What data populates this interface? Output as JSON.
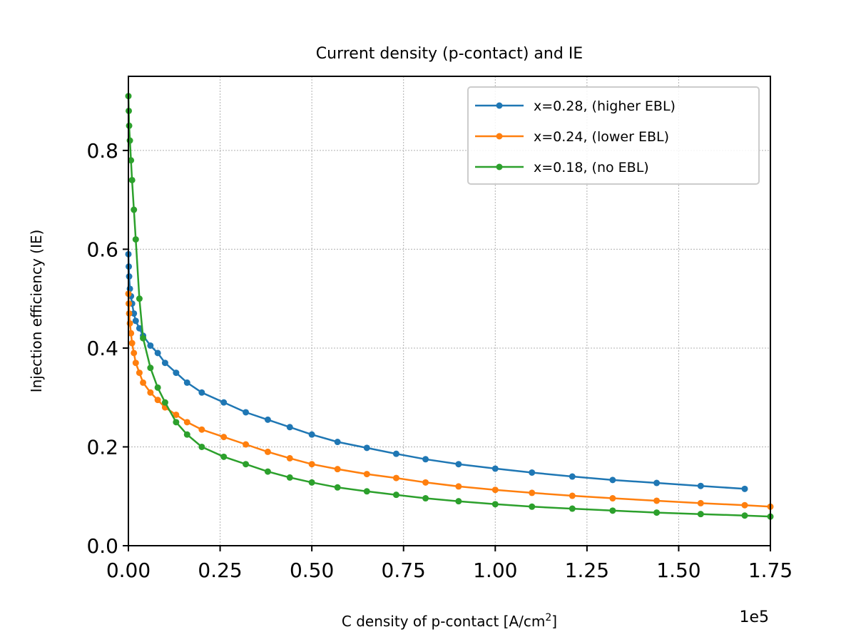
{
  "chart_data": {
    "type": "line",
    "title": "Current density (p-contact) and IE",
    "xlabel": "C density of p-contact [A/cm",
    "xlabel_sup": "2",
    "xlabel_suffix": "]",
    "ylabel": "Injection efficiency (IE)",
    "x_offset_label": "1e5",
    "xlim": [
      0,
      175000
    ],
    "ylim": [
      0,
      0.95
    ],
    "x_ticks": [
      0,
      25000,
      50000,
      75000,
      100000,
      125000,
      150000,
      175000
    ],
    "x_tick_labels": [
      "0.00",
      "0.25",
      "0.50",
      "0.75",
      "1.00",
      "1.25",
      "1.50",
      "1.75"
    ],
    "y_ticks": [
      0,
      0.2,
      0.4,
      0.6,
      0.8
    ],
    "y_tick_labels": [
      "0.0",
      "0.2",
      "0.4",
      "0.6",
      "0.8"
    ],
    "grid": true,
    "legend_position": "top-right",
    "series": [
      {
        "name": "x=0.28, (higher EBL)",
        "color": "#1f77b4",
        "x": [
          0,
          100,
          200,
          400,
          700,
          1000,
          1500,
          2000,
          3000,
          4000,
          6000,
          8000,
          10000,
          13000,
          16000,
          20000,
          26000,
          32000,
          38000,
          44000,
          50000,
          57000,
          65000,
          73000,
          81000,
          90000,
          100000,
          110000,
          121000,
          132000,
          144000,
          156000,
          168000
        ],
        "y": [
          0.59,
          0.565,
          0.545,
          0.52,
          0.505,
          0.49,
          0.47,
          0.455,
          0.44,
          0.425,
          0.405,
          0.39,
          0.37,
          0.35,
          0.33,
          0.31,
          0.29,
          0.27,
          0.255,
          0.24,
          0.225,
          0.21,
          0.198,
          0.186,
          0.175,
          0.165,
          0.156,
          0.148,
          0.14,
          0.133,
          0.127,
          0.121,
          0.115
        ]
      },
      {
        "name": "x=0.24, (lower EBL)",
        "color": "#ff7f0e",
        "x": [
          0,
          100,
          200,
          400,
          700,
          1000,
          1500,
          2000,
          3000,
          4000,
          6000,
          8000,
          10000,
          13000,
          16000,
          20000,
          26000,
          32000,
          38000,
          44000,
          50000,
          57000,
          65000,
          73000,
          81000,
          90000,
          100000,
          110000,
          121000,
          132000,
          144000,
          156000,
          168000,
          175000
        ],
        "y": [
          0.51,
          0.49,
          0.47,
          0.45,
          0.43,
          0.41,
          0.39,
          0.37,
          0.35,
          0.33,
          0.31,
          0.295,
          0.28,
          0.265,
          0.25,
          0.235,
          0.22,
          0.205,
          0.19,
          0.177,
          0.165,
          0.155,
          0.145,
          0.137,
          0.128,
          0.12,
          0.113,
          0.107,
          0.101,
          0.096,
          0.091,
          0.086,
          0.082,
          0.079
        ]
      },
      {
        "name": "x=0.18, (no EBL)",
        "color": "#2ca02c",
        "x": [
          0,
          100,
          200,
          400,
          700,
          1000,
          1500,
          2000,
          3000,
          4000,
          6000,
          8000,
          10000,
          13000,
          16000,
          20000,
          26000,
          32000,
          38000,
          44000,
          50000,
          57000,
          65000,
          73000,
          81000,
          90000,
          100000,
          110000,
          121000,
          132000,
          144000,
          156000,
          168000,
          175000
        ],
        "y": [
          0.91,
          0.88,
          0.85,
          0.82,
          0.78,
          0.74,
          0.68,
          0.62,
          0.5,
          0.42,
          0.36,
          0.32,
          0.29,
          0.25,
          0.225,
          0.2,
          0.18,
          0.165,
          0.15,
          0.138,
          0.128,
          0.118,
          0.11,
          0.103,
          0.096,
          0.09,
          0.084,
          0.079,
          0.075,
          0.071,
          0.067,
          0.064,
          0.061,
          0.059
        ]
      }
    ]
  }
}
